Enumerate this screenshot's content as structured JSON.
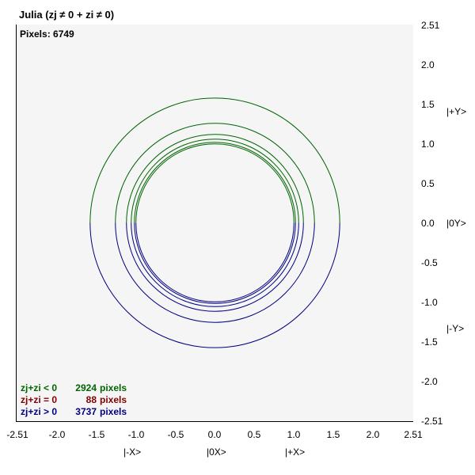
{
  "window": {
    "title": "Julia (zj ≠ 0 + zi ≠ 0)",
    "pixels_label": "Pixels: 6749"
  },
  "legend": [
    {
      "label": "zj+zi < 0",
      "count": "2924",
      "unit": "pixels",
      "color": "#006400"
    },
    {
      "label": "zj+zi = 0",
      "count": "88",
      "unit": "pixels",
      "color": "#800000"
    },
    {
      "label": "zj+zi > 0",
      "count": "3737",
      "unit": "pixels",
      "color": "#000080"
    }
  ],
  "axes": {
    "x_ticks": [
      "-2.51",
      "-2.0",
      "-1.5",
      "-1.0",
      "-0.5",
      "0.0",
      "0.5",
      "1.0",
      "1.5",
      "2.0",
      "2.51"
    ],
    "y_ticks": [
      "2.51",
      "2.0",
      "1.5",
      "1.0",
      "0.5",
      "0.0",
      "-0.5",
      "-1.0",
      "-1.5",
      "-2.0",
      "-2.51"
    ],
    "x_basis": [
      "|-X>",
      "|0X>",
      "|+X>"
    ],
    "y_basis": [
      "|+Y>",
      "|0Y>",
      "|-Y>"
    ]
  },
  "chart_data": {
    "type": "scatter",
    "xlim": [
      -2.51,
      2.51
    ],
    "ylim": [
      -2.51,
      2.51
    ],
    "grid": false,
    "legend_position": "bottom-left",
    "rings": [
      {
        "radius": 1.58,
        "color_top": "#006400",
        "color_bottom": "#000080"
      },
      {
        "radius": 1.26,
        "color_top": "#006400",
        "color_bottom": "#000080"
      },
      {
        "radius": 1.12,
        "color_top": "#006400",
        "color_bottom": "#000080"
      },
      {
        "radius": 1.06,
        "color_top": "#006400",
        "color_bottom": "#000080"
      },
      {
        "radius": 1.02,
        "color_top": "#006400",
        "color_bottom": "#000080"
      },
      {
        "radius": 1.0,
        "color_top": "#006400",
        "color_bottom": "#000080"
      }
    ]
  }
}
